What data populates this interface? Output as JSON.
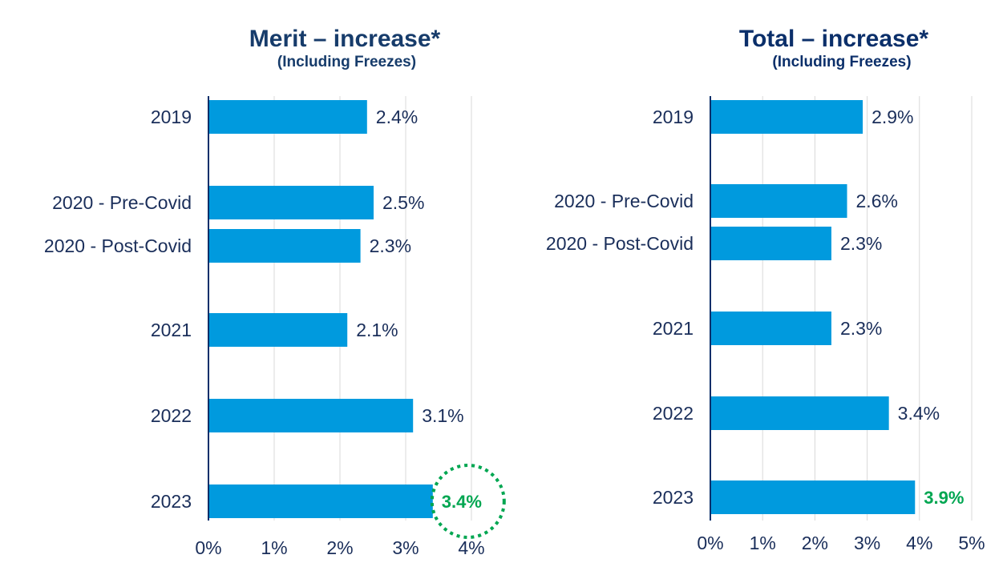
{
  "chart_data": [
    {
      "type": "bar",
      "title": "Merit – increase*",
      "subtitle": "(Including  Freezes)",
      "orientation": "horizontal",
      "categories": [
        "2019",
        "2020 - Pre-Covid",
        "2020 - Post-Covid",
        "2021",
        "2022",
        "2023"
      ],
      "values": [
        2.4,
        2.5,
        2.3,
        2.1,
        3.1,
        3.4
      ],
      "data_labels": [
        "2.4%",
        "2.5%",
        "2.3%",
        "2.1%",
        "3.1%",
        "3.4%"
      ],
      "x_ticks": [
        "0%",
        "1%",
        "2%",
        "3%",
        "4%"
      ],
      "xlim": [
        0,
        4
      ],
      "grid": true,
      "bar_color": "#009ade",
      "highlight": {
        "category": "2023",
        "label_color": "#00a651",
        "circle_color": "#00a651"
      }
    },
    {
      "type": "bar",
      "title": "Total – increase*",
      "subtitle": "(Including  Freezes)",
      "orientation": "horizontal",
      "categories": [
        "2019",
        "2020 - Pre-Covid",
        "2020 - Post-Covid",
        "2021",
        "2022",
        "2023"
      ],
      "values": [
        2.9,
        2.6,
        2.3,
        2.3,
        3.4,
        3.9
      ],
      "data_labels": [
        "2.9%",
        "2.6%",
        "2.3%",
        "2.3%",
        "3.4%",
        "3.9%"
      ],
      "x_ticks": [
        "0%",
        "1%",
        "2%",
        "3%",
        "4%",
        "5%"
      ],
      "xlim": [
        0,
        5
      ],
      "grid": true,
      "bar_color": "#009ade",
      "highlight": {
        "category": "2023",
        "label_color": "#00a651"
      }
    }
  ],
  "colors": {
    "text": "#1a2e5a",
    "axis": "#0b2f6a",
    "grid": "#d9d9d9"
  }
}
